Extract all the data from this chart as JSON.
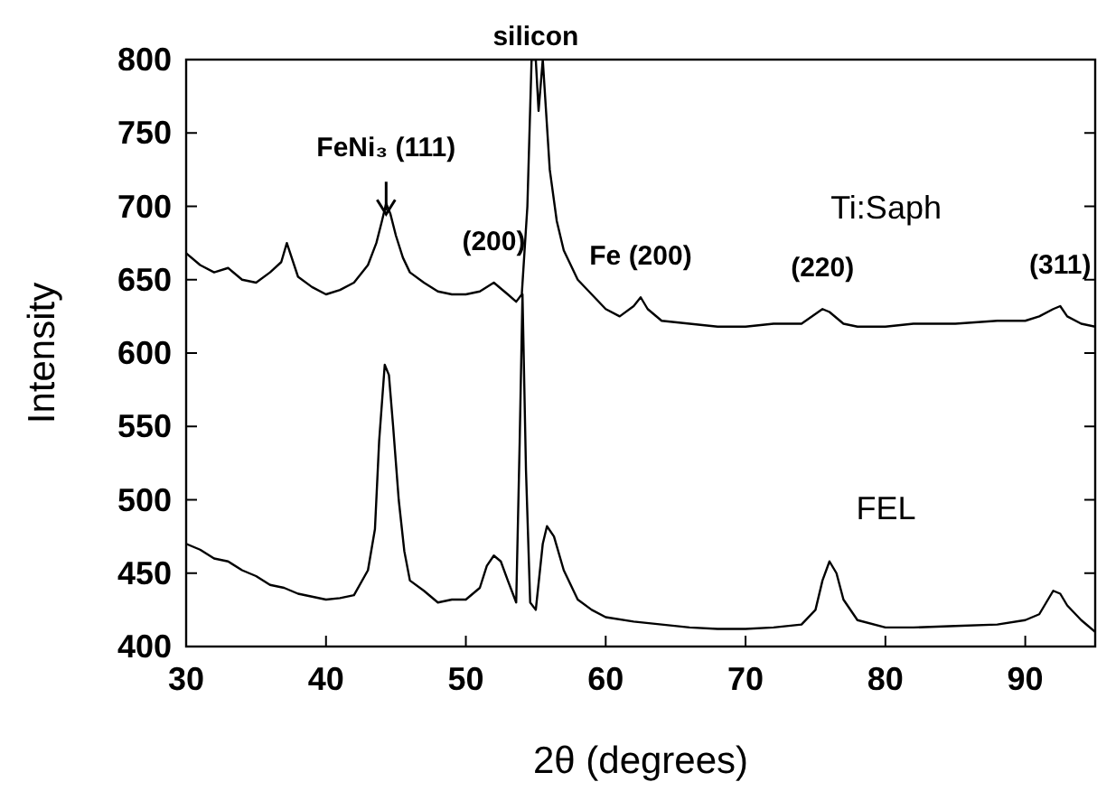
{
  "chart_data": {
    "type": "line",
    "xlabel": "2θ (degrees)",
    "ylabel": "Intensity",
    "xlim": [
      30,
      95
    ],
    "ylim": [
      400,
      800
    ],
    "xticks": [
      30,
      40,
      50,
      60,
      70,
      80,
      90
    ],
    "yticks": [
      400,
      450,
      500,
      550,
      600,
      650,
      700,
      750,
      800
    ],
    "grid": false,
    "marker": "none",
    "line_style": "solid",
    "series": [
      {
        "name": "Ti:Saph",
        "color": "#000000",
        "x": [
          30,
          31,
          32,
          33,
          34,
          35,
          36,
          36.8,
          37.2,
          38,
          39,
          40,
          41,
          42,
          43,
          43.6,
          44,
          44.3,
          44.6,
          45,
          45.5,
          46,
          47,
          48,
          49,
          50,
          51,
          52,
          53,
          53.6,
          54,
          54.4,
          54.7,
          55,
          55.2,
          55.5,
          56,
          56.5,
          57,
          58,
          59,
          60,
          61,
          62,
          62.5,
          63,
          64,
          66,
          68,
          70,
          72,
          74,
          75.5,
          76,
          77,
          78,
          80,
          82,
          85,
          88,
          90,
          91,
          92,
          92.5,
          93,
          94,
          95
        ],
        "values": [
          668,
          660,
          655,
          658,
          650,
          648,
          655,
          662,
          675,
          652,
          645,
          640,
          643,
          648,
          660,
          675,
          690,
          702,
          695,
          680,
          665,
          655,
          648,
          642,
          640,
          640,
          642,
          648,
          640,
          635,
          640,
          700,
          800,
          800,
          765,
          800,
          725,
          690,
          670,
          650,
          640,
          630,
          625,
          632,
          638,
          630,
          622,
          620,
          618,
          618,
          620,
          620,
          630,
          628,
          620,
          618,
          618,
          620,
          620,
          622,
          622,
          625,
          630,
          632,
          625,
          620,
          618
        ]
      },
      {
        "name": "FEL",
        "color": "#000000",
        "x": [
          30,
          31,
          32,
          33,
          34,
          35,
          36,
          37,
          38,
          39,
          40,
          41,
          42,
          43,
          43.5,
          43.8,
          44.2,
          44.5,
          44.8,
          45.2,
          45.6,
          46,
          47,
          48,
          49,
          50,
          51,
          51.5,
          52,
          52.5,
          53,
          53.6,
          53.85,
          54.05,
          54.3,
          54.6,
          55,
          55.5,
          55.8,
          56.3,
          57,
          58,
          59,
          60,
          62,
          64,
          66,
          68,
          70,
          72,
          74,
          75,
          75.5,
          76,
          76.5,
          77,
          78,
          80,
          82,
          85,
          88,
          90,
          91,
          91.5,
          92,
          92.5,
          93,
          94,
          95
        ],
        "values": [
          470,
          466,
          460,
          458,
          452,
          448,
          442,
          440,
          436,
          434,
          432,
          433,
          435,
          452,
          480,
          540,
          592,
          585,
          550,
          500,
          465,
          445,
          438,
          430,
          432,
          432,
          440,
          455,
          462,
          458,
          445,
          430,
          540,
          640,
          520,
          430,
          425,
          470,
          482,
          475,
          452,
          432,
          425,
          420,
          417,
          415,
          413,
          412,
          412,
          413,
          415,
          425,
          445,
          458,
          450,
          432,
          418,
          413,
          413,
          414,
          415,
          418,
          422,
          430,
          438,
          436,
          428,
          418,
          410
        ]
      }
    ],
    "annotations": [
      {
        "text": "silicon",
        "x": 55,
        "y": 800
      },
      {
        "text": "FeNi₃ (111)",
        "x": 44.3,
        "y": 702
      },
      {
        "text": "(200)",
        "x": 52,
        "y": 648
      },
      {
        "text": "Fe (200)",
        "x": 62.5,
        "y": 638
      },
      {
        "text": "(220)",
        "x": 75.5,
        "y": 630
      },
      {
        "text": "(311)",
        "x": 92.5,
        "y": 632
      }
    ]
  }
}
